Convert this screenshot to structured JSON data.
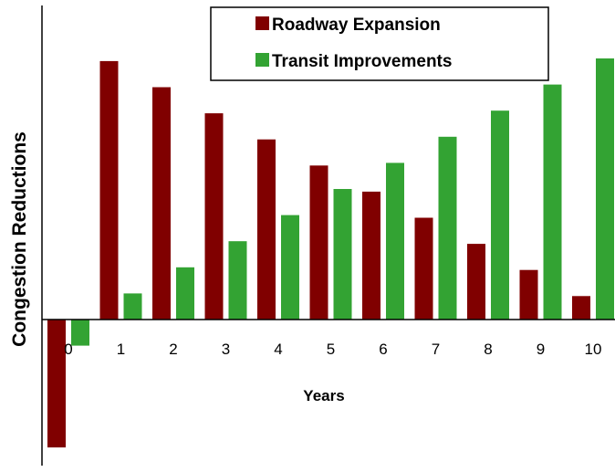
{
  "chart_data": {
    "type": "bar",
    "categories": [
      "0",
      "1",
      "2",
      "3",
      "4",
      "5",
      "6",
      "7",
      "8",
      "9",
      "10"
    ],
    "series": [
      {
        "name": "Roadway Expansion",
        "color": "#800000",
        "values": [
          -4.9,
          9.9,
          8.9,
          7.9,
          6.9,
          5.9,
          4.9,
          3.9,
          2.9,
          1.9,
          0.9
        ]
      },
      {
        "name": "Transit Improvements",
        "color": "#33a333",
        "values": [
          -1.0,
          1.0,
          2.0,
          3.0,
          4.0,
          5.0,
          6.0,
          7.0,
          8.0,
          9.0,
          10.0
        ]
      }
    ],
    "xlabel": "Years",
    "ylabel": "Congestion Reductions",
    "ylim": [
      -5.5,
      11.8
    ],
    "grid": false,
    "legend_position": "top-right"
  }
}
